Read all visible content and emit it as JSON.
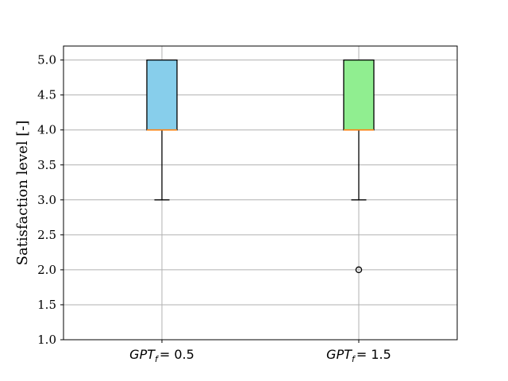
{
  "chart_data": {
    "type": "box",
    "ylabel": "Satisfaction level [-]",
    "ylim": [
      1.0,
      5.2
    ],
    "yticks": [
      "1.0",
      "1.5",
      "2.0",
      "2.5",
      "3.0",
      "3.5",
      "4.0",
      "4.5",
      "5.0"
    ],
    "grid": true,
    "categories": [
      {
        "var": "GPT",
        "sub": "f",
        "rest": "= 0.5"
      },
      {
        "var": "GPT",
        "sub": "f",
        "rest": "= 1.5"
      }
    ],
    "boxes": [
      {
        "whisker_low": 3.0,
        "q1": 4.0,
        "median": 4.0,
        "q3": 5.0,
        "whisker_high": 5.0,
        "outliers": [],
        "color": "#87ceeb"
      },
      {
        "whisker_low": 3.0,
        "q1": 4.0,
        "median": 4.0,
        "q3": 5.0,
        "whisker_high": 5.0,
        "outliers": [
          2.0
        ],
        "color": "#90ee90"
      }
    ],
    "median_color": "#ff7f0e",
    "grid_color": "#b0b0b0"
  }
}
